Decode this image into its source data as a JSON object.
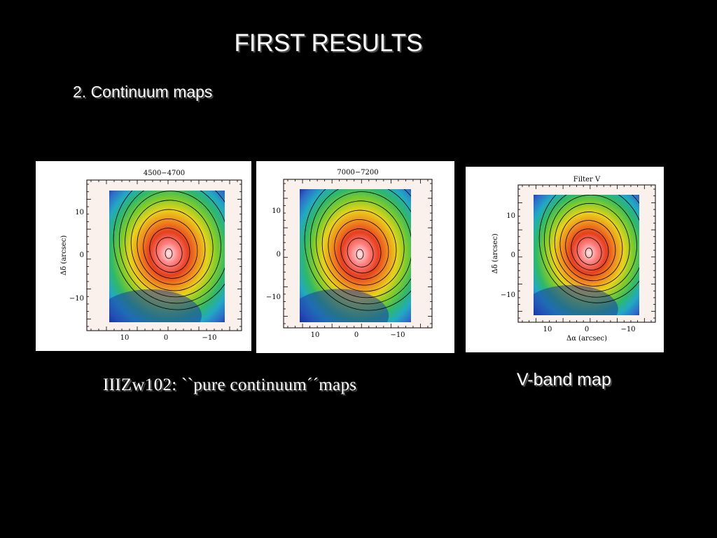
{
  "slide": {
    "title": "FIRST RESULTS",
    "subtitle": "2. Continuum maps",
    "caption_left": "IIIZw102: ``pure continuum´´maps",
    "caption_right": "V-band map"
  },
  "maps": [
    {
      "title": "4500−4700",
      "ylabel": "Δδ (arcsec)",
      "xlabel": "",
      "xticks": [
        "10",
        "0",
        "−10"
      ],
      "yticks": [
        "10",
        "0",
        "−10"
      ]
    },
    {
      "title": "7000−7200",
      "ylabel": "",
      "xlabel": "",
      "xticks": [
        "10",
        "0",
        "−10"
      ],
      "yticks": [
        "10",
        "0",
        "−10"
      ]
    },
    {
      "title": "Filter V",
      "ylabel": "Δδ (arcsec)",
      "xlabel": "Δα (arcsec)",
      "xticks": [
        "10",
        "0",
        "−10"
      ],
      "yticks": [
        "10",
        "0",
        "−10"
      ]
    }
  ],
  "colors": {
    "background": "#000000",
    "text": "#ffffff",
    "colormap": [
      "#15239a",
      "#2d6ac8",
      "#22a8c4",
      "#2fb86a",
      "#7fcc2b",
      "#e8d21c",
      "#f08a1e",
      "#e6401e",
      "#ff7f7f",
      "#ffe6e6"
    ]
  }
}
